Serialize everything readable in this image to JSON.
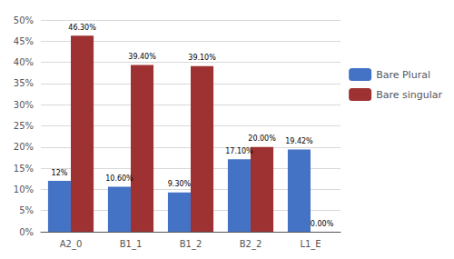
{
  "chart_data": {
    "type": "bar",
    "categories": [
      "A2_0",
      "B1_1",
      "B1_2",
      "B2_2",
      "L1_E"
    ],
    "series": [
      {
        "name": "Bare Plural",
        "color": "#4472C4",
        "values": [
          12.0,
          10.6,
          9.3,
          17.1,
          19.42
        ],
        "value_labels": [
          "12%",
          "10.60%",
          "9.30%",
          "17.10%",
          "19.42%"
        ]
      },
      {
        "name": "Bare singular",
        "color": "#9E3131",
        "values": [
          46.3,
          39.4,
          39.1,
          20.0,
          0.0
        ],
        "value_labels": [
          "46.30%",
          "39.40%",
          "39.10%",
          "20.00%",
          "0.00%"
        ]
      }
    ],
    "ylim": [
      0,
      50
    ],
    "yticks": [
      {
        "value": 0,
        "label": "0%"
      },
      {
        "value": 5,
        "label": "5%"
      },
      {
        "value": 10,
        "label": "10%"
      },
      {
        "value": 15,
        "label": "15%"
      },
      {
        "value": 20,
        "label": "20%"
      },
      {
        "value": 25,
        "label": "25%"
      },
      {
        "value": 30,
        "label": "30%"
      },
      {
        "value": 35,
        "label": "35%"
      },
      {
        "value": 40,
        "label": "40%"
      },
      {
        "value": 45,
        "label": "45%"
      },
      {
        "value": 50,
        "label": "50%"
      }
    ],
    "grid": true,
    "legend": "right",
    "data_labels": true
  }
}
